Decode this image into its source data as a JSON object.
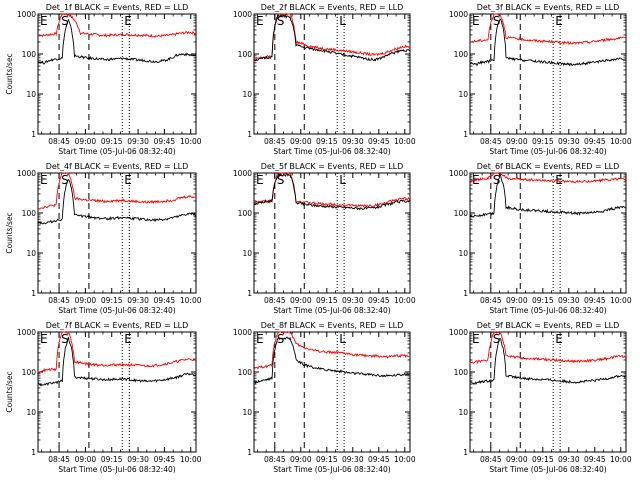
{
  "chart_data": [
    {
      "type": "line",
      "title": "Det_1f BLACK = Events, RED = LLD",
      "ylabel": "Counts/sec",
      "xlabel": "Start Time (05-Jul-06 08:32:40)",
      "yscale": "log",
      "ylim": [
        1,
        1000
      ],
      "yticks": [
        "1",
        "10",
        "100",
        "1000"
      ],
      "xticks": [
        "08:45",
        "09:00",
        "09:15",
        "09:30",
        "09:45",
        "10:00"
      ],
      "markers": {
        "E1": "E",
        "S": "S",
        "E2": "E"
      },
      "marker_times": [
        0.0,
        8.5,
        17.0,
        36.0,
        40.0
      ],
      "series": [
        {
          "color": "#ff0000",
          "values": [
            300,
            290,
            310,
            320,
            1000,
            1000,
            700,
            330,
            320,
            310,
            300,
            290,
            295,
            300,
            310,
            305,
            300,
            295,
            290,
            285,
            280,
            290,
            300,
            320,
            340,
            350,
            330
          ]
        },
        {
          "color": "#000000",
          "values": [
            65,
            60,
            70,
            75,
            80,
            700,
            90,
            85,
            80,
            78,
            75,
            72,
            74,
            76,
            78,
            75,
            72,
            70,
            68,
            65,
            66,
            70,
            80,
            95,
            100,
            95,
            90
          ]
        }
      ]
    },
    {
      "type": "line",
      "title": "Det_2f BLACK = Events, RED = LLD",
      "ylabel": "",
      "xlabel": "Start Time (05-Jul-06 08:32:40)",
      "yscale": "log",
      "ylim": [
        1,
        1000
      ],
      "yticks": [
        "1",
        "10",
        "100",
        "1000"
      ],
      "xticks": [
        "08:45",
        "09:00",
        "09:15",
        "09:30",
        "09:45",
        "10:00"
      ],
      "markers": {
        "E1": "E",
        "S": "S",
        "E2": "L"
      },
      "marker_times": [
        0.0,
        8.5,
        17.0,
        36.0,
        40.0
      ],
      "series": [
        {
          "color": "#ff0000",
          "values": [
            75,
            80,
            85,
            90,
            1000,
            1000,
            1000,
            200,
            180,
            160,
            150,
            140,
            135,
            130,
            125,
            120,
            115,
            110,
            105,
            100,
            95,
            100,
            110,
            125,
            140,
            155,
            150
          ]
        },
        {
          "color": "#000000",
          "values": [
            70,
            75,
            80,
            85,
            900,
            900,
            800,
            170,
            150,
            140,
            130,
            125,
            118,
            110,
            100,
            95,
            90,
            85,
            80,
            75,
            72,
            78,
            90,
            105,
            115,
            125,
            120
          ]
        }
      ]
    },
    {
      "type": "line",
      "title": "Det_3f BLACK = Events, RED = LLD",
      "ylabel": "",
      "xlabel": "Start Time (05-Jul-06 08:32:40)",
      "yscale": "log",
      "ylim": [
        1,
        1000
      ],
      "yticks": [
        "1",
        "10",
        "100",
        "1000"
      ],
      "xticks": [
        "08:45",
        "09:00",
        "09:15",
        "09:30",
        "09:45",
        "10:00"
      ],
      "markers": {
        "E1": "E",
        "S": "S",
        "E2": "E"
      },
      "marker_times": [
        0.0,
        8.5,
        17.0,
        36.0,
        40.0
      ],
      "series": [
        {
          "color": "#ff0000",
          "values": [
            200,
            210,
            220,
            230,
            1000,
            1000,
            260,
            250,
            240,
            230,
            220,
            215,
            210,
            205,
            200,
            195,
            190,
            185,
            190,
            195,
            200,
            210,
            220,
            230,
            240,
            250,
            245
          ]
        },
        {
          "color": "#000000",
          "values": [
            60,
            55,
            62,
            65,
            70,
            800,
            80,
            75,
            72,
            70,
            68,
            66,
            64,
            62,
            60,
            58,
            56,
            55,
            56,
            58,
            60,
            62,
            66,
            70,
            72,
            75,
            72
          ]
        }
      ]
    },
    {
      "type": "line",
      "title": "Det_4f BLACK = Events, RED = LLD",
      "ylabel": "Counts/sec",
      "xlabel": "Start Time (05-Jul-06 08:32:40)",
      "yscale": "log",
      "ylim": [
        1,
        1000
      ],
      "yticks": [
        "1",
        "10",
        "100",
        "1000"
      ],
      "xticks": [
        "08:45",
        "09:00",
        "09:15",
        "09:30",
        "09:45",
        "10:00"
      ],
      "markers": {
        "E1": "E",
        "S": "S",
        "E2": "E"
      },
      "marker_times": [
        0.0,
        8.5,
        17.0,
        36.0,
        40.0
      ],
      "series": [
        {
          "color": "#ff0000",
          "values": [
            130,
            140,
            150,
            160,
            1000,
            1000,
            230,
            220,
            210,
            205,
            200,
            195,
            200,
            205,
            210,
            200,
            195,
            190,
            185,
            190,
            195,
            200,
            210,
            230,
            250,
            260,
            250
          ]
        },
        {
          "color": "#000000",
          "values": [
            60,
            55,
            60,
            65,
            70,
            700,
            90,
            85,
            80,
            78,
            75,
            72,
            74,
            76,
            78,
            75,
            72,
            70,
            68,
            66,
            68,
            70,
            75,
            80,
            90,
            95,
            90
          ]
        }
      ]
    },
    {
      "type": "line",
      "title": "Det_5f BLACK = Events, RED = LLD",
      "ylabel": "",
      "xlabel": "Start Time (05-Jul-06 08:32:40)",
      "yscale": "log",
      "ylim": [
        1,
        1000
      ],
      "yticks": [
        "1",
        "10",
        "100",
        "1000"
      ],
      "xticks": [
        "08:45",
        "09:00",
        "09:15",
        "09:30",
        "09:45",
        "10:00"
      ],
      "markers": {
        "E1": "E",
        "S": "S",
        "E2": "L"
      },
      "marker_times": [
        0.0,
        8.5,
        17.0,
        36.0,
        40.0
      ],
      "series": [
        {
          "color": "#ff0000",
          "values": [
            180,
            190,
            200,
            210,
            1000,
            1000,
            1000,
            200,
            190,
            180,
            175,
            170,
            168,
            165,
            160,
            158,
            155,
            152,
            150,
            150,
            155,
            165,
            180,
            200,
            220,
            230,
            225
          ]
        },
        {
          "color": "#000000",
          "values": [
            170,
            180,
            190,
            200,
            900,
            900,
            900,
            180,
            170,
            160,
            155,
            150,
            148,
            145,
            140,
            138,
            135,
            132,
            130,
            130,
            135,
            145,
            160,
            175,
            190,
            200,
            195
          ]
        }
      ]
    },
    {
      "type": "line",
      "title": "Det_6f BLACK = Events, RED = LLD",
      "ylabel": "",
      "xlabel": "Start Time (05-Jul-06 08:32:40)",
      "yscale": "log",
      "ylim": [
        1,
        1000
      ],
      "yticks": [
        "1",
        "10",
        "100",
        "1000"
      ],
      "xticks": [
        "08:45",
        "09:00",
        "09:15",
        "09:30",
        "09:45",
        "10:00"
      ],
      "markers": {
        "E1": "E",
        "S": "S",
        "E2": "E"
      },
      "marker_times": [
        0.0,
        8.5,
        17.0,
        36.0,
        40.0
      ],
      "series": [
        {
          "color": "#ff0000",
          "values": [
            650,
            680,
            700,
            720,
            1000,
            1000,
            750,
            720,
            700,
            690,
            680,
            670,
            660,
            650,
            640,
            630,
            620,
            610,
            600,
            610,
            620,
            640,
            660,
            680,
            700,
            720,
            700
          ]
        },
        {
          "color": "#000000",
          "values": [
            80,
            85,
            90,
            95,
            100,
            900,
            140,
            130,
            125,
            120,
            118,
            115,
            112,
            110,
            108,
            105,
            102,
            100,
            98,
            100,
            102,
            105,
            110,
            120,
            130,
            140,
            135
          ]
        }
      ]
    },
    {
      "type": "line",
      "title": "Det_7f BLACK = Events, RED = LLD",
      "ylabel": "Counts/sec",
      "xlabel": "Start Time (05-Jul-06 08:32:40)",
      "yscale": "log",
      "ylim": [
        1,
        1000
      ],
      "yticks": [
        "1",
        "10",
        "100",
        "1000"
      ],
      "xticks": [
        "08:45",
        "09:00",
        "09:15",
        "09:30",
        "09:45",
        "10:00"
      ],
      "markers": {
        "E1": "E",
        "S": "S",
        "E2": "E"
      },
      "marker_times": [
        0.0,
        8.5,
        17.0,
        36.0,
        40.0
      ],
      "series": [
        {
          "color": "#ff0000",
          "values": [
            100,
            110,
            115,
            120,
            1000,
            1000,
            180,
            170,
            160,
            155,
            150,
            148,
            150,
            152,
            155,
            150,
            148,
            145,
            140,
            145,
            150,
            160,
            170,
            185,
            200,
            210,
            200
          ]
        },
        {
          "color": "#000000",
          "values": [
            50,
            48,
            52,
            55,
            60,
            700,
            75,
            72,
            70,
            68,
            66,
            64,
            65,
            66,
            68,
            65,
            62,
            60,
            58,
            60,
            62,
            65,
            70,
            75,
            85,
            90,
            85
          ]
        }
      ]
    },
    {
      "type": "line",
      "title": "Det_8f BLACK = Events, RED = LLD",
      "ylabel": "",
      "xlabel": "Start Time (05-Jul-06 08:32:40)",
      "yscale": "log",
      "ylim": [
        1,
        1000
      ],
      "yticks": [
        "1",
        "10",
        "100",
        "1000"
      ],
      "xticks": [
        "08:45",
        "09:00",
        "09:15",
        "09:30",
        "09:45",
        "10:00"
      ],
      "markers": {
        "E1": "E",
        "S": "S",
        "E2": "L"
      },
      "marker_times": [
        0.0,
        8.5,
        17.0,
        36.0,
        40.0
      ],
      "series": [
        {
          "color": "#ff0000",
          "values": [
            120,
            130,
            140,
            150,
            1000,
            1000,
            1000,
            500,
            420,
            380,
            350,
            330,
            320,
            310,
            300,
            290,
            280,
            270,
            260,
            255,
            250,
            245,
            240,
            245,
            250,
            260,
            250
          ]
        },
        {
          "color": "#000000",
          "values": [
            55,
            60,
            65,
            70,
            700,
            700,
            700,
            200,
            160,
            140,
            130,
            120,
            115,
            110,
            105,
            100,
            95,
            92,
            90,
            88,
            85,
            82,
            80,
            82,
            85,
            88,
            85
          ]
        }
      ]
    },
    {
      "type": "line",
      "title": "Det_9f BLACK = Events, RED = LLD",
      "ylabel": "",
      "xlabel": "Start Time (05-Jul-06 08:32:40)",
      "yscale": "log",
      "ylim": [
        1,
        1000
      ],
      "yticks": [
        "1",
        "10",
        "100",
        "1000"
      ],
      "xticks": [
        "08:45",
        "09:00",
        "09:15",
        "09:30",
        "09:45",
        "10:00"
      ],
      "markers": {
        "E1": "E",
        "S": "S",
        "E2": "E"
      },
      "marker_times": [
        0.0,
        8.5,
        17.0,
        36.0,
        40.0
      ],
      "series": [
        {
          "color": "#ff0000",
          "values": [
            170,
            180,
            190,
            200,
            1000,
            1000,
            250,
            240,
            230,
            220,
            215,
            210,
            208,
            205,
            200,
            195,
            190,
            188,
            185,
            190,
            195,
            200,
            210,
            220,
            235,
            250,
            240
          ]
        },
        {
          "color": "#000000",
          "values": [
            55,
            52,
            58,
            60,
            62,
            700,
            80,
            76,
            72,
            70,
            68,
            66,
            65,
            64,
            62,
            60,
            58,
            57,
            56,
            58,
            60,
            62,
            66,
            70,
            75,
            80,
            78
          ]
        }
      ]
    }
  ]
}
